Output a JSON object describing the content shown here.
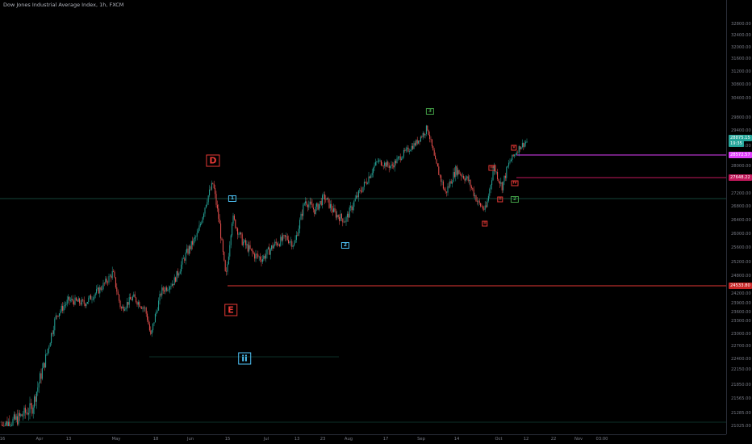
{
  "header": {
    "title": "Dow Jones Industrial Average Index, 1h, FXCM"
  },
  "price_axis": {
    "ticks": [
      {
        "price": 32800,
        "label": "32800.00"
      },
      {
        "price": 32400,
        "label": "32400.00"
      },
      {
        "price": 32000,
        "label": "32000.00"
      },
      {
        "price": 31600,
        "label": "31600.00"
      },
      {
        "price": 31200,
        "label": "31200.00"
      },
      {
        "price": 30800,
        "label": "30800.00"
      },
      {
        "price": 30400,
        "label": "30400.00"
      },
      {
        "price": 29800,
        "label": "29800.00"
      },
      {
        "price": 29400,
        "label": "29400.00"
      },
      {
        "price": 28800,
        "label": "28800.00"
      },
      {
        "price": 28000,
        "label": "28000.00"
      },
      {
        "price": 27600,
        "label": "27600.00"
      },
      {
        "price": 27200,
        "label": "27200.00"
      },
      {
        "price": 26800,
        "label": "26800.00"
      },
      {
        "price": 26400,
        "label": "26400.00"
      },
      {
        "price": 26000,
        "label": "26000.00"
      },
      {
        "price": 25600,
        "label": "25600.00"
      },
      {
        "price": 25200,
        "label": "25200.00"
      },
      {
        "price": 24800,
        "label": "24800.00"
      },
      {
        "price": 24200,
        "label": "24200.00"
      },
      {
        "price": 23900,
        "label": "23900.00"
      },
      {
        "price": 23600,
        "label": "23600.00"
      },
      {
        "price": 23300,
        "label": "23300.00"
      },
      {
        "price": 23000,
        "label": "23000.00"
      },
      {
        "price": 22700,
        "label": "22700.00"
      },
      {
        "price": 22400,
        "label": "22400.00"
      },
      {
        "price": 22150,
        "label": "22150.00"
      },
      {
        "price": 21850,
        "label": "21850.00"
      },
      {
        "price": 21565,
        "label": "21565.00"
      },
      {
        "price": 21285,
        "label": "21285.00"
      },
      {
        "price": 21025,
        "label": "21025.00"
      }
    ],
    "price_tags": [
      {
        "label": "28875.15",
        "color": "#26a69a"
      },
      {
        "label": "19:35",
        "color": "#26a69a"
      },
      {
        "label": "28572.57",
        "color": "#e040fb"
      },
      {
        "label": "27648.22",
        "color": "#c2185b"
      },
      {
        "label": "24533.80",
        "color": "#c62828"
      }
    ]
  },
  "time_axis": {
    "ticks": [
      "16",
      "Apr",
      "13",
      "May",
      "18",
      "Jun",
      "15",
      "Jul",
      "13",
      "23",
      "Aug",
      "17",
      "Sep",
      "14",
      "Oct",
      "12",
      "22",
      "Nov",
      "03:00"
    ]
  },
  "wave_labels": [
    {
      "text": "D",
      "color": "#e53935"
    },
    {
      "text": "E",
      "color": "#e53935"
    },
    {
      "text": "ii",
      "color": "#4fc3f7"
    },
    {
      "text": "1",
      "color": "#4fc3f7"
    },
    {
      "text": "2",
      "color": "#4fc3f7"
    },
    {
      "text": "3",
      "color": "#43a047"
    },
    {
      "text": "2",
      "color": "#43a047"
    },
    {
      "text": "ii",
      "color": "#e53935"
    },
    {
      "text": "ii",
      "color": "#e53935"
    },
    {
      "text": "iii",
      "color": "#e53935"
    },
    {
      "text": "iv",
      "color": "#e53935"
    },
    {
      "text": "v",
      "color": "#e53935"
    }
  ],
  "colors": {
    "background": "#000000",
    "up": "#26a69a",
    "down": "#ef5350",
    "line_magenta": "#e040fb",
    "line_red": "#e53935",
    "line_teal": "#26a69a"
  }
}
